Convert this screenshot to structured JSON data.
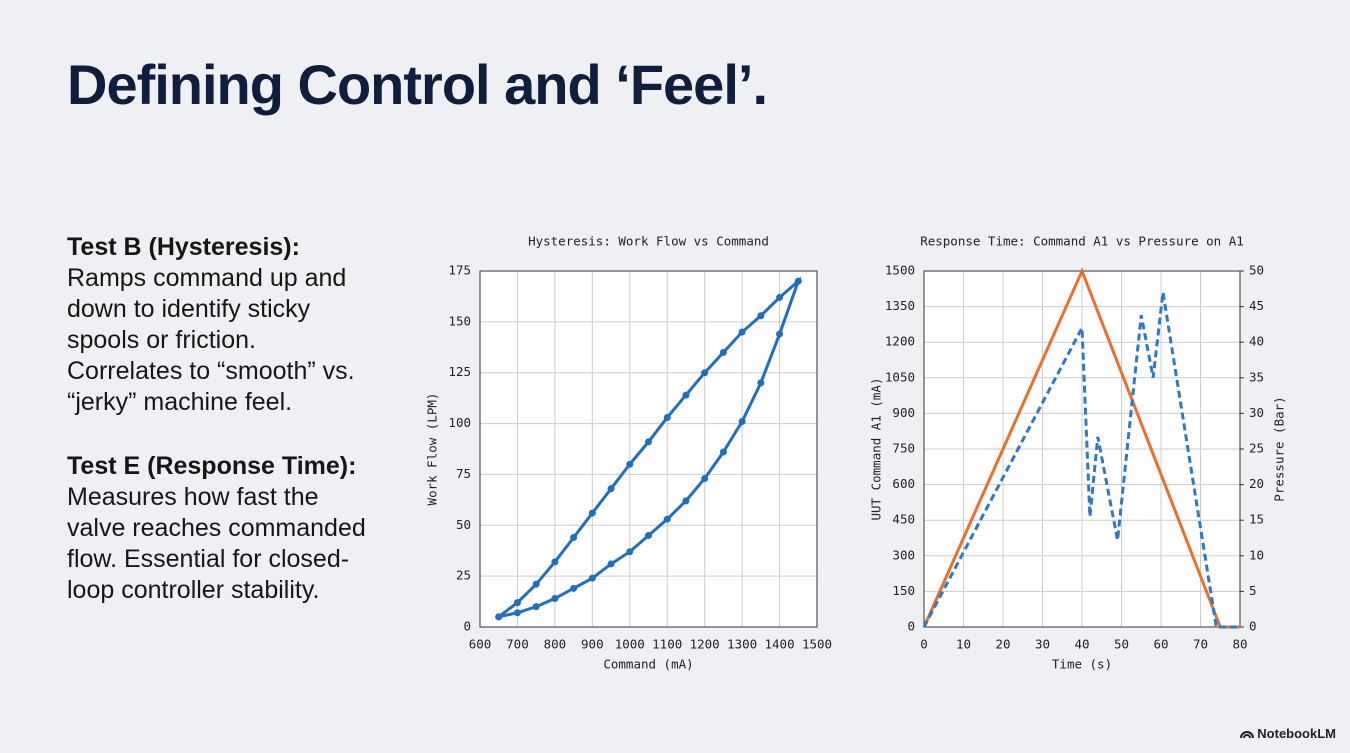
{
  "title": "Defining Control and ‘Feel’.",
  "sections": [
    {
      "heading": "Test B (Hysteresis):",
      "body": "Ramps command up and down to identify sticky spools or friction. Correlates to “smooth” vs. “jerky” machine feel."
    },
    {
      "heading": "Test E (Response Time):",
      "body": "Measures how fast the valve reaches commanded flow. Essential for closed-loop controller stability."
    }
  ],
  "brand": "NotebookLM",
  "chart_data": [
    {
      "type": "line",
      "title": "Hysteresis: Work Flow vs Command",
      "x_label": "Command (mA)",
      "y_label": "Work Flow (LPM)",
      "x": [
        650,
        700,
        750,
        800,
        850,
        900,
        950,
        1000,
        1050,
        1100,
        1150,
        1200,
        1250,
        1300,
        1350,
        1400,
        1450,
        1400,
        1350,
        1300,
        1250,
        1200,
        1150,
        1100,
        1050,
        1000,
        950,
        900,
        850,
        800,
        750,
        700,
        650
      ],
      "series": [
        {
          "color": "#1f6fc0",
          "marker": "circle",
          "values": [
            5,
            12,
            21,
            32,
            44,
            56,
            68,
            80,
            91,
            103,
            114,
            125,
            135,
            145,
            153,
            162,
            170,
            144,
            120,
            101,
            86,
            73,
            62,
            53,
            45,
            37,
            31,
            24,
            19,
            14,
            10,
            7,
            5
          ]
        }
      ],
      "xlim": [
        600,
        1500
      ],
      "xticks": [
        600,
        700,
        800,
        900,
        1000,
        1100,
        1200,
        1300,
        1400,
        1500
      ],
      "ylim": [
        0,
        175
      ],
      "yticks": [
        0,
        25,
        50,
        75,
        100,
        125,
        150,
        175
      ],
      "grid": true
    },
    {
      "type": "line",
      "title": "Response Time: Command A1 vs Pressure on A1",
      "x_label": "Time (s)",
      "y_label": "UUT Command A1 (mA)",
      "y2_label": "Pressure (Bar)",
      "series": [
        {
          "color": "#e8702a",
          "x": [
            0,
            40,
            75,
            80
          ],
          "values": [
            0,
            1500,
            0,
            0
          ]
        },
        {
          "color": "#2f78c4",
          "dashed": true,
          "axis": "y2",
          "x": [
            0,
            40,
            42,
            44,
            49,
            55,
            58,
            60.5,
            74,
            80
          ],
          "values": [
            0,
            42,
            15.5,
            26.7,
            12.2,
            43.8,
            35,
            47,
            0,
            0
          ]
        }
      ],
      "xlim": [
        0,
        80
      ],
      "xticks": [
        0,
        10,
        20,
        30,
        40,
        50,
        60,
        70,
        80
      ],
      "ylim": [
        0,
        1500
      ],
      "yticks": [
        0,
        150,
        300,
        450,
        600,
        750,
        900,
        1050,
        1200,
        1350,
        1500
      ],
      "y2lim": [
        0,
        50
      ],
      "y2ticks": [
        0,
        5,
        10,
        15,
        20,
        25,
        30,
        35,
        40,
        45,
        50
      ],
      "grid": true
    }
  ]
}
